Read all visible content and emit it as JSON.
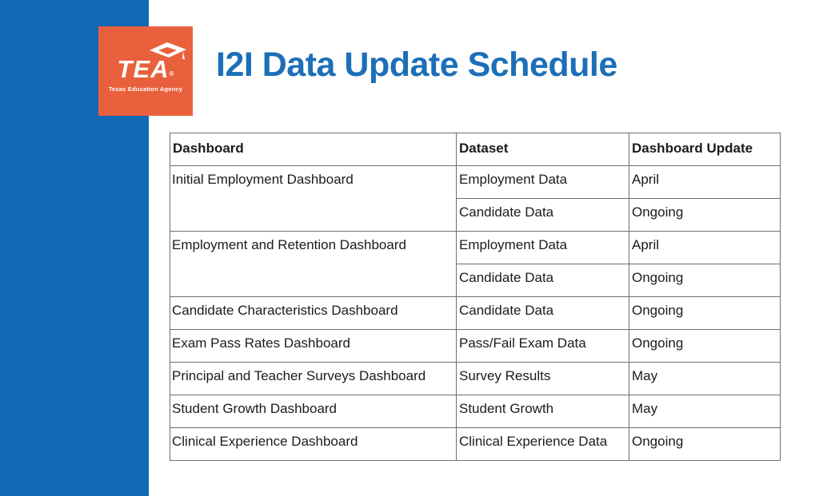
{
  "colors": {
    "sidebar_blue": "#1168B4",
    "title_blue": "#1C6FB8",
    "logo_orange": "#E9603C",
    "table_border_gray": "#6F6F6F",
    "table_text": "#1B1B1B"
  },
  "logo": {
    "text": "TEA",
    "registered_mark": "®",
    "subtext": "Texas Education Agency"
  },
  "page": {
    "title": "I2I Data Update Schedule"
  },
  "table": {
    "headers": [
      "Dashboard",
      "Dataset",
      "Dashboard Update"
    ],
    "groups": [
      {
        "dashboard": "Initial Employment Dashboard",
        "entries": [
          {
            "dataset": "Employment Data",
            "update": "April"
          },
          {
            "dataset": "Candidate Data",
            "update": "Ongoing"
          }
        ]
      },
      {
        "dashboard": "Employment and Retention Dashboard",
        "entries": [
          {
            "dataset": "Employment Data",
            "update": "April"
          },
          {
            "dataset": "Candidate Data",
            "update": "Ongoing"
          }
        ]
      },
      {
        "dashboard": "Candidate Characteristics Dashboard",
        "entries": [
          {
            "dataset": "Candidate Data",
            "update": "Ongoing"
          }
        ]
      },
      {
        "dashboard": "Exam Pass Rates Dashboard",
        "entries": [
          {
            "dataset": "Pass/Fail Exam Data",
            "update": "Ongoing"
          }
        ]
      },
      {
        "dashboard": "Principal and Teacher Surveys Dashboard",
        "entries": [
          {
            "dataset": "Survey Results",
            "update": "May"
          }
        ]
      },
      {
        "dashboard": "Student Growth Dashboard",
        "entries": [
          {
            "dataset": "Student Growth",
            "update": "May"
          }
        ]
      },
      {
        "dashboard": "Clinical Experience Dashboard",
        "entries": [
          {
            "dataset": "Clinical Experience Data",
            "update": "Ongoing"
          }
        ]
      }
    ]
  }
}
